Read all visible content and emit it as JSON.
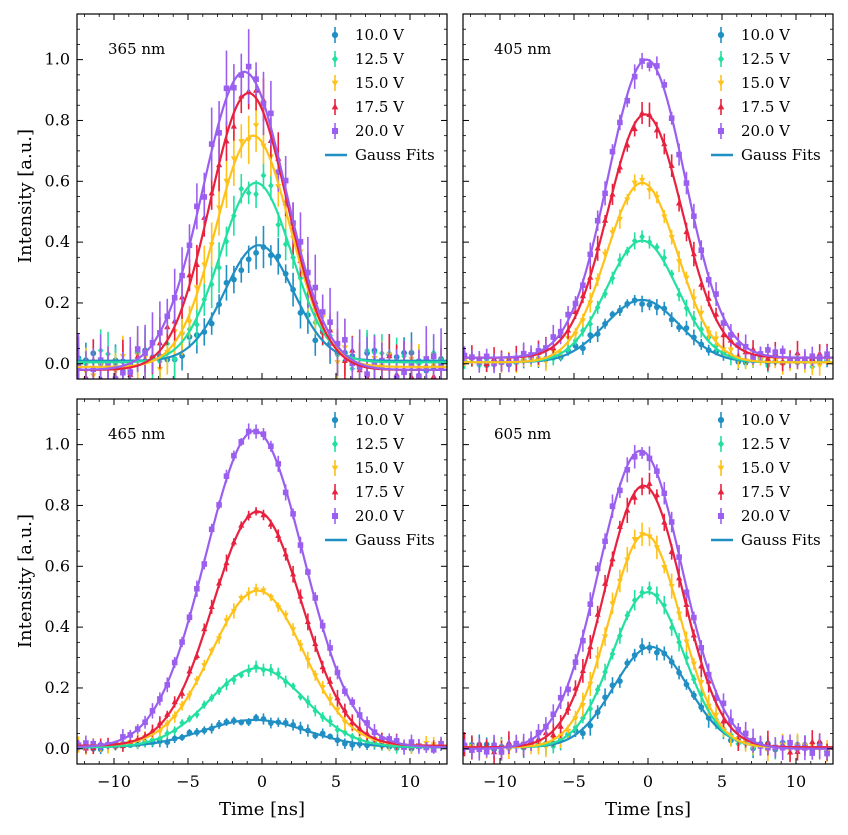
{
  "figure": {
    "ylabel": "Intensity [a.u.]",
    "xlabel": "Time [ns]",
    "fit_legend_label": "Gauss Fits"
  },
  "voltage_colors": {
    "10.0 V": "#1f8fc4",
    "12.5 V": "#23e0a0",
    "15.0 V": "#ffc21a",
    "17.5 V": "#e8213f",
    "20.0 V": "#9b5ff0"
  },
  "axes": {
    "xlim": [
      -12.5,
      12.5
    ],
    "ylim": [
      -0.05,
      1.15
    ],
    "xticks": [
      -10,
      -5,
      0,
      5,
      10
    ],
    "yticks": [
      0.0,
      0.2,
      0.4,
      0.6,
      0.8,
      1.0
    ],
    "xtick_labels": [
      "−10",
      "−5",
      "0",
      "5",
      "10"
    ],
    "ytick_labels": [
      "0.0",
      "0.2",
      "0.4",
      "0.6",
      "0.8",
      "1.0"
    ]
  },
  "chart_data": [
    {
      "type": "scatter",
      "title": "365 nm",
      "series": [
        {
          "name": "10.0 V",
          "marker": "circle",
          "fit": {
            "amplitude": 0.38,
            "center": -0.2,
            "sigma": 2.3,
            "offset": 0.01
          },
          "noise": 0.035,
          "yerr": 0.05
        },
        {
          "name": "12.5 V",
          "marker": "diamond",
          "fit": {
            "amplitude": 0.59,
            "center": -0.4,
            "sigma": 2.4,
            "offset": 0.005
          },
          "noise": 0.04,
          "yerr": 0.06
        },
        {
          "name": "15.0 V",
          "marker": "triangle-down",
          "fit": {
            "amplitude": 0.76,
            "center": -0.6,
            "sigma": 2.5,
            "offset": -0.01
          },
          "noise": 0.045,
          "yerr": 0.07
        },
        {
          "name": "17.5 V",
          "marker": "triangle-up",
          "fit": {
            "amplitude": 0.91,
            "center": -0.9,
            "sigma": 2.6,
            "offset": -0.02
          },
          "noise": 0.045,
          "yerr": 0.07
        },
        {
          "name": "20.0 V",
          "marker": "square",
          "fit": {
            "amplitude": 0.98,
            "center": -1.2,
            "sigma": 2.8,
            "offset": -0.02
          },
          "noise": 0.05,
          "yerr": 0.09
        }
      ]
    },
    {
      "type": "scatter",
      "title": "405 nm",
      "series": [
        {
          "name": "10.0 V",
          "marker": "circle",
          "fit": {
            "amplitude": 0.205,
            "center": -0.4,
            "sigma": 2.5,
            "offset": 0.005
          },
          "noise": 0.015,
          "yerr": 0.02
        },
        {
          "name": "12.5 V",
          "marker": "diamond",
          "fit": {
            "amplitude": 0.4,
            "center": -0.4,
            "sigma": 2.4,
            "offset": 0.005
          },
          "noise": 0.015,
          "yerr": 0.02
        },
        {
          "name": "15.0 V",
          "marker": "triangle-down",
          "fit": {
            "amplitude": 0.59,
            "center": -0.4,
            "sigma": 2.4,
            "offset": 0.005
          },
          "noise": 0.015,
          "yerr": 0.025
        },
        {
          "name": "17.5 V",
          "marker": "triangle-up",
          "fit": {
            "amplitude": 0.8,
            "center": -0.2,
            "sigma": 2.5,
            "offset": 0.02
          },
          "noise": 0.02,
          "yerr": 0.03
        },
        {
          "name": "20.0 V",
          "marker": "square",
          "fit": {
            "amplitude": 0.98,
            "center": -0.1,
            "sigma": 2.6,
            "offset": 0.02
          },
          "noise": 0.02,
          "yerr": 0.03
        }
      ]
    },
    {
      "type": "scatter",
      "title": "465 nm",
      "series": [
        {
          "name": "10.0 V",
          "marker": "circle",
          "fit": {
            "amplitude": 0.09,
            "center": -0.5,
            "sigma": 3.5,
            "offset": 0.005
          },
          "noise": 0.008,
          "yerr": 0.015
        },
        {
          "name": "12.5 V",
          "marker": "diamond",
          "fit": {
            "amplitude": 0.26,
            "center": -0.3,
            "sigma": 3.2,
            "offset": 0.005
          },
          "noise": 0.008,
          "yerr": 0.015
        },
        {
          "name": "15.0 V",
          "marker": "triangle-down",
          "fit": {
            "amplitude": 0.51,
            "center": -0.3,
            "sigma": 3.1,
            "offset": 0.01
          },
          "noise": 0.008,
          "yerr": 0.02
        },
        {
          "name": "17.5 V",
          "marker": "triangle-up",
          "fit": {
            "amplitude": 0.77,
            "center": -0.3,
            "sigma": 3.0,
            "offset": 0.01
          },
          "noise": 0.01,
          "yerr": 0.02
        },
        {
          "name": "20.0 V",
          "marker": "square",
          "fit": {
            "amplitude": 1.04,
            "center": -0.5,
            "sigma": 3.3,
            "offset": 0.005
          },
          "noise": 0.012,
          "yerr": 0.02
        }
      ]
    },
    {
      "type": "scatter",
      "title": "605 nm",
      "series": [
        {
          "name": "10.0 V",
          "marker": "circle",
          "fit": {
            "amplitude": 0.33,
            "center": 0.2,
            "sigma": 2.5,
            "offset": 0.005
          },
          "noise": 0.015,
          "yerr": 0.025
        },
        {
          "name": "12.5 V",
          "marker": "diamond",
          "fit": {
            "amplitude": 0.51,
            "center": 0.0,
            "sigma": 2.4,
            "offset": 0.005
          },
          "noise": 0.015,
          "yerr": 0.025
        },
        {
          "name": "15.0 V",
          "marker": "triangle-down",
          "fit": {
            "amplitude": 0.7,
            "center": -0.2,
            "sigma": 2.4,
            "offset": 0.005
          },
          "noise": 0.015,
          "yerr": 0.03
        },
        {
          "name": "17.5 V",
          "marker": "triangle-up",
          "fit": {
            "amplitude": 0.86,
            "center": -0.3,
            "sigma": 2.6,
            "offset": 0.005
          },
          "noise": 0.02,
          "yerr": 0.03
        },
        {
          "name": "20.0 V",
          "marker": "square",
          "fit": {
            "amplitude": 0.98,
            "center": -0.5,
            "sigma": 2.8,
            "offset": 0.0
          },
          "noise": 0.02,
          "yerr": 0.03
        }
      ]
    }
  ]
}
